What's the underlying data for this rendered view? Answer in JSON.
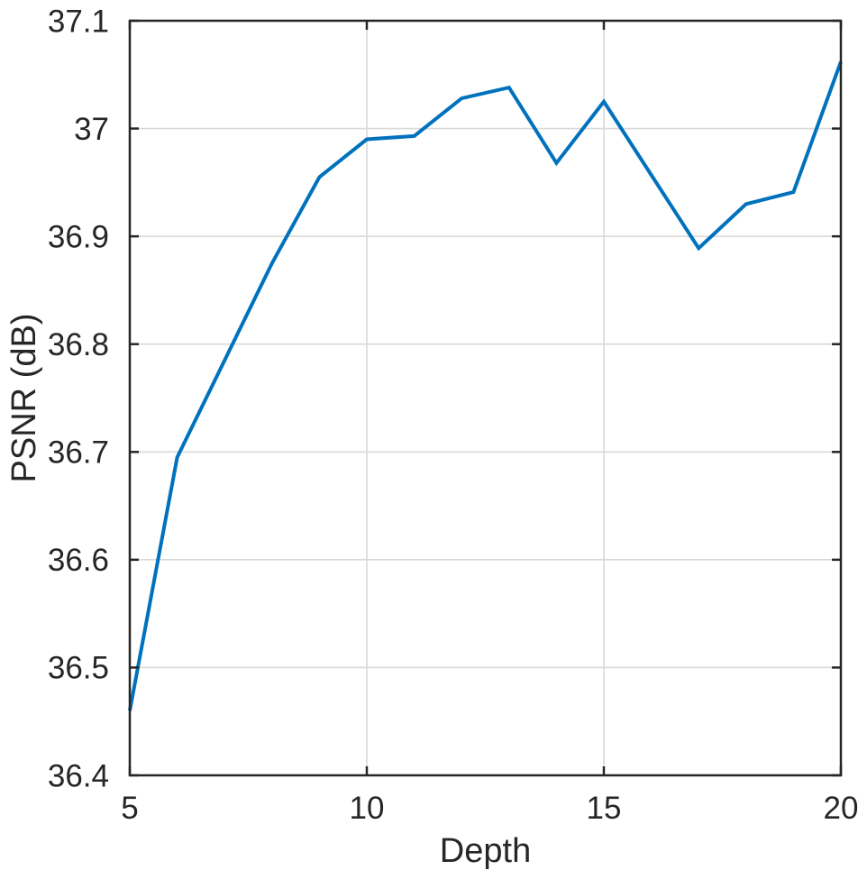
{
  "chart_data": {
    "type": "line",
    "title": "",
    "xlabel": "Depth",
    "ylabel": "PSNR (dB)",
    "x": [
      5,
      6,
      7,
      8,
      9,
      10,
      11,
      12,
      13,
      14,
      15,
      16,
      17,
      18,
      19,
      20
    ],
    "series": [
      {
        "name": "PSNR",
        "color": "#0072bd",
        "values": [
          36.46,
          36.695,
          36.785,
          36.875,
          36.955,
          36.99,
          36.993,
          37.028,
          37.038,
          36.968,
          37.025,
          36.957,
          36.889,
          36.93,
          36.941,
          37.062
        ]
      }
    ],
    "xlim": [
      5,
      20
    ],
    "ylim": [
      36.4,
      37.1
    ],
    "xticks": [
      5,
      10,
      15,
      20
    ],
    "xtick_labels": [
      "5",
      "10",
      "15",
      "20"
    ],
    "yticks": [
      36.4,
      36.5,
      36.6,
      36.7,
      36.8,
      36.9,
      37,
      37.1
    ],
    "ytick_labels": [
      "36.4",
      "36.5",
      "36.6",
      "36.7",
      "36.8",
      "36.9",
      "37",
      "37.1"
    ],
    "grid": true,
    "legend_position": "none",
    "colors": {
      "line": "#0072bd",
      "axis": "#262626",
      "grid": "#d9d9d9",
      "text": "#262626",
      "background": "#ffffff"
    }
  }
}
